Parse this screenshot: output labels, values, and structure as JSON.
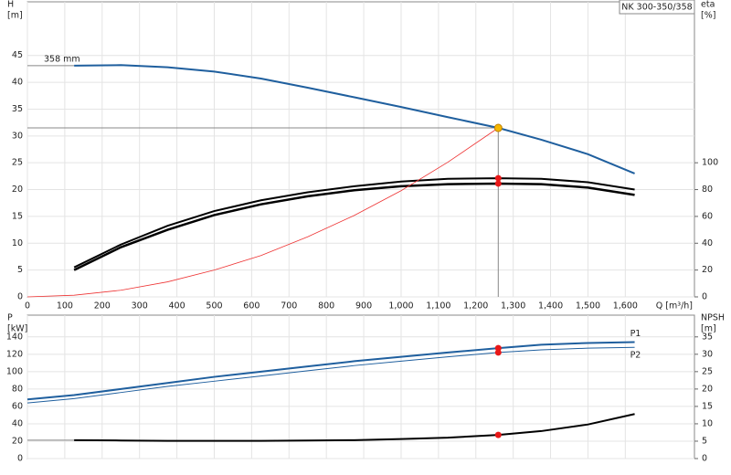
{
  "chart_data": [
    {
      "type": "line",
      "title": "NK 300-350/358",
      "ylabel": [
        "H",
        "[m]"
      ],
      "y2label": [
        "eta",
        "[%]"
      ],
      "xlabel": "Q [m³/h]",
      "x": [
        0,
        125,
        250,
        375,
        500,
        625,
        750,
        875,
        1000,
        1125,
        1260,
        1375,
        1500,
        1625
      ],
      "xlim": [
        0,
        1785
      ],
      "xticks": [
        0,
        100,
        200,
        300,
        400,
        500,
        600,
        700,
        800,
        900,
        {
          "value": 1000,
          "label": "1,000"
        },
        {
          "value": 1100,
          "label": "1,100"
        },
        {
          "value": 1200,
          "label": "1,200"
        },
        {
          "value": 1300,
          "label": "1,300"
        },
        {
          "value": 1400,
          "label": "1,400"
        },
        {
          "value": 1500,
          "label": "1,500"
        },
        {
          "value": 1600,
          "label": "1,600"
        }
      ],
      "xtick_labels": true,
      "ylim": [
        0,
        55
      ],
      "yticks": [
        0,
        5,
        10,
        15,
        20,
        25,
        30,
        35,
        40,
        45
      ],
      "y2lim": [
        0,
        220
      ],
      "y2ticks": [
        0,
        20,
        40,
        60,
        80,
        100
      ],
      "grid": true,
      "duty_point": {
        "x": 1260,
        "y": 31.5,
        "color": "#f5b800"
      },
      "series": [
        {
          "name": "358 mm",
          "color": "#1f5f9e",
          "width": 2,
          "extend_left": true,
          "dot": false,
          "values": [
            null,
            43.1,
            43.2,
            42.8,
            42.0,
            40.7,
            39.0,
            37.2,
            35.4,
            33.5,
            31.5,
            29.3,
            26.6,
            23.0
          ]
        },
        {
          "color": "#000000",
          "width": 2,
          "axis": "y2",
          "dot": true,
          "values": [
            null,
            22,
            39,
            53,
            64,
            72,
            78,
            82.5,
            86,
            88,
            88.5,
            88,
            85.5,
            80
          ]
        },
        {
          "color": "#000000",
          "width": 2.5,
          "axis": "y2",
          "dot": true,
          "values": [
            null,
            20,
            37,
            50,
            61,
            69,
            75,
            79.5,
            82.5,
            84,
            84.5,
            84,
            81.5,
            76
          ]
        },
        {
          "color": "#ee3333",
          "width": 0.8,
          "dot": false,
          "values": [
            0,
            0.31,
            1.24,
            2.8,
            5.0,
            7.7,
            11.2,
            15.2,
            19.8,
            25.1,
            31.5,
            null,
            null,
            null
          ]
        }
      ]
    },
    {
      "type": "line",
      "ylabel": [
        "P",
        "[kW]"
      ],
      "y2label": [
        "NPSH",
        "[m]"
      ],
      "x": [
        0,
        125,
        250,
        375,
        500,
        625,
        750,
        875,
        1000,
        1125,
        1260,
        1375,
        1500,
        1625
      ],
      "xlim": [
        0,
        1785
      ],
      "xticks": [
        0,
        100,
        200,
        300,
        400,
        500,
        600,
        700,
        800,
        900,
        1000,
        1100,
        1200,
        1300,
        1400,
        1500,
        1600
      ],
      "xtick_labels": false,
      "ylim": [
        0,
        165
      ],
      "yticks": [
        0,
        20,
        40,
        60,
        80,
        100,
        120,
        140
      ],
      "y2lim": [
        0,
        41.25
      ],
      "y2ticks": [
        0,
        5,
        10,
        15,
        20,
        25,
        30,
        35
      ],
      "grid": true,
      "series": [
        {
          "name": "P1",
          "color": "#1f5f9e",
          "width": 2,
          "dot": true,
          "values": [
            68,
            73,
            80,
            87,
            94,
            100,
            106,
            112,
            117,
            122,
            127,
            131,
            133,
            134
          ]
        },
        {
          "name": "P2",
          "color": "#1f5f9e",
          "width": 1,
          "dot": true,
          "values": [
            64,
            69,
            76,
            83,
            89,
            95,
            101,
            107,
            112,
            117,
            122,
            125,
            127,
            128
          ]
        },
        {
          "color": "#000000",
          "width": 2,
          "axis": "y2",
          "extend_left": true,
          "dot": true,
          "values": [
            null,
            5.3,
            5.2,
            5.1,
            5.1,
            5.1,
            5.2,
            5.3,
            5.6,
            6.0,
            6.8,
            7.9,
            9.8,
            12.8
          ]
        }
      ]
    }
  ]
}
